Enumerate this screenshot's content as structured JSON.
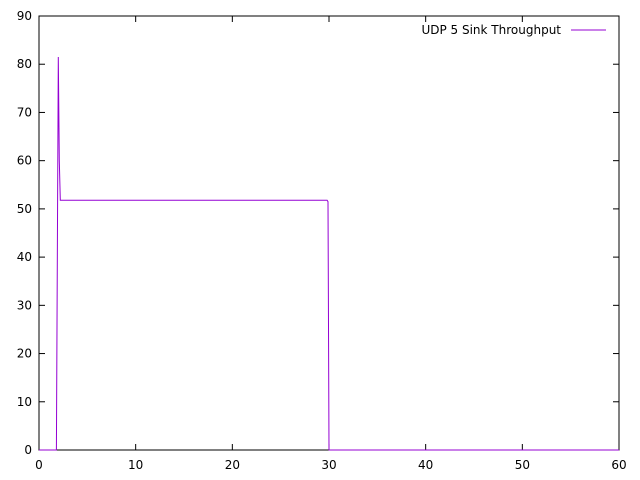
{
  "chart_data": {
    "type": "line",
    "title": "",
    "xlabel": "",
    "ylabel": "",
    "xlim": [
      0,
      60
    ],
    "ylim": [
      0,
      90
    ],
    "x_ticks": [
      0,
      10,
      20,
      30,
      40,
      50,
      60
    ],
    "y_ticks": [
      0,
      10,
      20,
      30,
      40,
      50,
      60,
      70,
      80,
      90
    ],
    "grid": false,
    "legend_position": "top-right",
    "series": [
      {
        "name": "UDP 5 Sink Throughput",
        "color": "#9400d3",
        "x": [
          0,
          1.8,
          2.0,
          2.1,
          2.2,
          3,
          5,
          8,
          10,
          12,
          15,
          18,
          20,
          22,
          25,
          28,
          29.5,
          29.8,
          29.9,
          30.0,
          60
        ],
        "y": [
          0,
          0,
          81.5,
          60,
          51.8,
          51.8,
          51.8,
          51.8,
          51.8,
          51.8,
          51.8,
          51.8,
          51.8,
          51.8,
          51.8,
          51.8,
          51.8,
          51.8,
          51.5,
          0,
          0
        ]
      }
    ]
  }
}
